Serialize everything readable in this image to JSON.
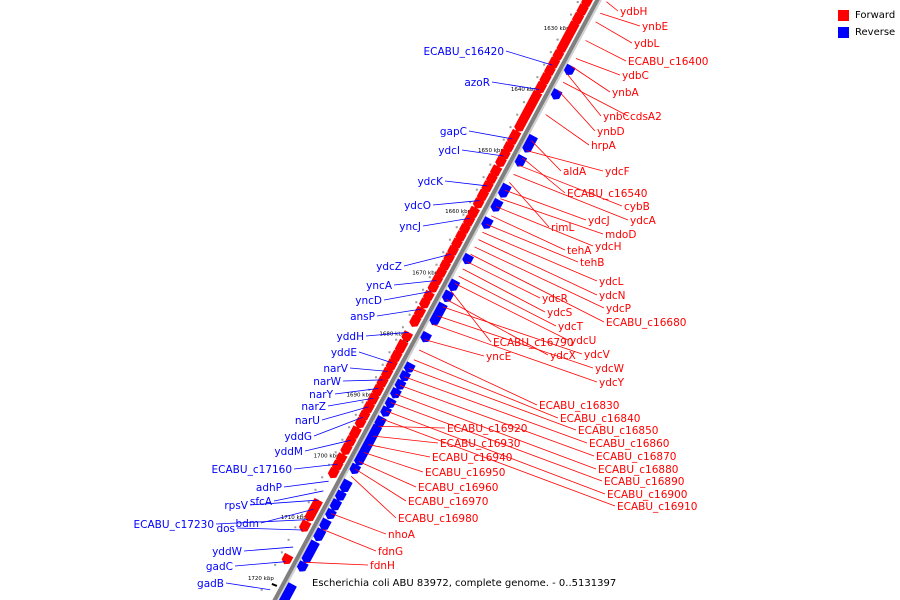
{
  "legend": {
    "forward_label": "Forward",
    "reverse_label": "Reverse",
    "forward_color": "#ff0000",
    "reverse_color": "#0000ff"
  },
  "caption": "Escherichia coli ABU 83972, complete genome. - 0..5131397",
  "colors": {
    "forward": "#ff0000",
    "reverse": "#0000ff",
    "axis": "#808080"
  },
  "ticks": [
    "1630 kbp",
    "1640 kbp",
    "1650 kbp",
    "1660 kbp",
    "1670 kbp",
    "1680 kbp",
    "1690 kbp",
    "1700 kbp",
    "1710 kbp",
    "1720 kbp"
  ],
  "forward_genes": [
    "ydbH",
    "ynbE",
    "ydbL",
    "ECABU_c16400",
    "ydbC",
    "ynbA",
    "ynbC",
    "cdsA2",
    "ynbD",
    "hrpA",
    "aldA",
    "ydcF",
    "ECABU_c16540",
    "cybB",
    "ydcA",
    "rimL",
    "ydcJ",
    "mdoD",
    "ydcH",
    "tehA",
    "tehB",
    "ydcL",
    "ydcN",
    "ydcP",
    "ECABU_c16680",
    "ydcR",
    "ydcS",
    "ydcT",
    "ydcU",
    "ECABU_c16790",
    "ydcX",
    "ydcV",
    "ydcW",
    "ydcY",
    "yncE",
    "ECABU_c16830",
    "ECABU_c16840",
    "ECABU_c16850",
    "ECABU_c16860",
    "ECABU_c16870",
    "ECABU_c16880",
    "ECABU_c16890",
    "ECABU_c16900",
    "ECABU_c16910",
    "ECABU_c16920",
    "ECABU_c16930",
    "ECABU_c16940",
    "ECABU_c16950",
    "ECABU_c16960",
    "ECABU_c16970",
    "ECABU_c16980",
    "nhoA",
    "fdnG",
    "fdnH"
  ],
  "reverse_genes": [
    "ECABU_c16420",
    "azoR",
    "gapC",
    "ydcI",
    "ydcK",
    "ydcO",
    "yncJ",
    "ydcZ",
    "yncA",
    "yncD",
    "ansP",
    "yddH",
    "yddE",
    "narV",
    "narW",
    "narY",
    "narZ",
    "narU",
    "yddG",
    "yddM",
    "ECABU_c17160",
    "adhP",
    "sfcA",
    "rpsV",
    "bdm",
    "ECABU_c17230",
    "dos",
    "yddW",
    "gadC",
    "gadB"
  ]
}
